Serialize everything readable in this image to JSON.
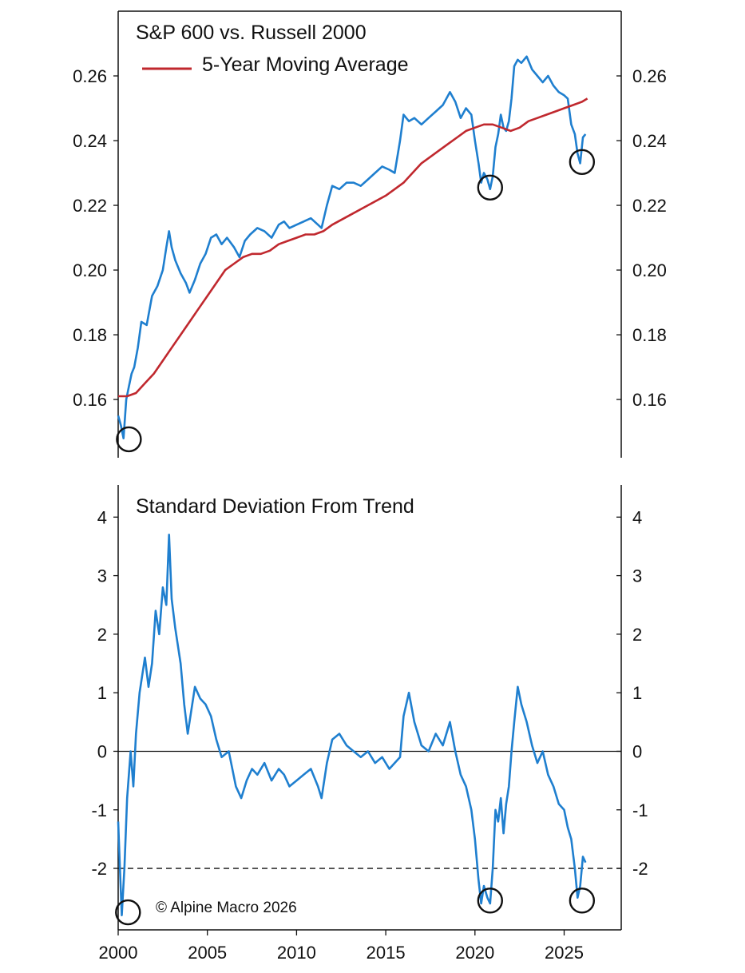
{
  "chart_data": [
    {
      "type": "line",
      "title": "S&P 600 vs. Russell 2000",
      "xlim": [
        2000,
        2028.2
      ],
      "ylim": [
        0.142,
        0.28
      ],
      "yticks": [
        "0.16",
        "0.18",
        "0.20",
        "0.22",
        "0.24",
        "0.26"
      ],
      "ytick_values": [
        0.16,
        0.18,
        0.2,
        0.22,
        0.24,
        0.26
      ],
      "legend": {
        "placement": "top-left",
        "entries": [
          "5-Year Moving Average"
        ]
      },
      "series": [
        {
          "key": "ratio",
          "color": "#1f7fcf",
          "x": [
            2000.0,
            2000.15,
            2000.3,
            2000.45,
            2000.6,
            2000.75,
            2000.9,
            2001.1,
            2001.3,
            2001.6,
            2001.9,
            2002.2,
            2002.5,
            2002.7,
            2002.85,
            2003.0,
            2003.2,
            2003.5,
            2003.8,
            2004.0,
            2004.3,
            2004.6,
            2004.9,
            2005.2,
            2005.5,
            2005.8,
            2006.1,
            2006.5,
            2006.8,
            2007.1,
            2007.4,
            2007.8,
            2008.2,
            2008.6,
            2009.0,
            2009.3,
            2009.6,
            2010.0,
            2010.4,
            2010.8,
            2011.2,
            2011.4,
            2011.7,
            2012.0,
            2012.4,
            2012.8,
            2013.2,
            2013.6,
            2014.0,
            2014.4,
            2014.8,
            2015.2,
            2015.5,
            2015.8,
            2016.0,
            2016.3,
            2016.6,
            2017.0,
            2017.4,
            2017.8,
            2018.2,
            2018.6,
            2018.9,
            2019.2,
            2019.5,
            2019.8,
            2020.0,
            2020.2,
            2020.35,
            2020.5,
            2020.7,
            2020.85,
            2021.0,
            2021.15,
            2021.3,
            2021.45,
            2021.6,
            2021.75,
            2021.9,
            2022.05,
            2022.2,
            2022.4,
            2022.6,
            2022.9,
            2023.2,
            2023.5,
            2023.8,
            2024.1,
            2024.4,
            2024.7,
            2025.0,
            2025.2,
            2025.4,
            2025.6,
            2025.75,
            2025.9,
            2026.05,
            2026.2
          ],
          "y": [
            0.155,
            0.152,
            0.148,
            0.16,
            0.164,
            0.168,
            0.17,
            0.176,
            0.184,
            0.183,
            0.192,
            0.195,
            0.2,
            0.207,
            0.212,
            0.207,
            0.203,
            0.199,
            0.196,
            0.193,
            0.197,
            0.202,
            0.205,
            0.21,
            0.211,
            0.208,
            0.21,
            0.207,
            0.204,
            0.209,
            0.211,
            0.213,
            0.212,
            0.21,
            0.214,
            0.215,
            0.213,
            0.214,
            0.215,
            0.216,
            0.214,
            0.213,
            0.22,
            0.226,
            0.225,
            0.227,
            0.227,
            0.226,
            0.228,
            0.23,
            0.232,
            0.231,
            0.23,
            0.24,
            0.248,
            0.246,
            0.247,
            0.245,
            0.247,
            0.249,
            0.251,
            0.255,
            0.252,
            0.247,
            0.25,
            0.248,
            0.24,
            0.233,
            0.227,
            0.23,
            0.228,
            0.225,
            0.229,
            0.238,
            0.242,
            0.248,
            0.244,
            0.243,
            0.246,
            0.253,
            0.263,
            0.265,
            0.264,
            0.266,
            0.262,
            0.26,
            0.258,
            0.26,
            0.257,
            0.255,
            0.254,
            0.253,
            0.245,
            0.242,
            0.236,
            0.233,
            0.241,
            0.242
          ]
        },
        {
          "key": "ma",
          "name": "5-Year Moving Average",
          "color": "#c0282e",
          "x": [
            2000.0,
            2000.5,
            2001.0,
            2001.5,
            2002.0,
            2002.5,
            2003.0,
            2003.5,
            2004.0,
            2004.5,
            2005.0,
            2005.5,
            2006.0,
            2006.5,
            2007.0,
            2007.5,
            2008.0,
            2008.5,
            2009.0,
            2009.5,
            2010.0,
            2010.5,
            2011.0,
            2011.5,
            2012.0,
            2013.0,
            2014.0,
            2015.0,
            2015.5,
            2016.0,
            2016.5,
            2017.0,
            2017.5,
            2018.0,
            2018.5,
            2019.0,
            2019.5,
            2020.0,
            2020.5,
            2021.0,
            2021.5,
            2022.0,
            2022.5,
            2023.0,
            2023.5,
            2024.0,
            2024.5,
            2025.0,
            2025.5,
            2026.0,
            2026.3
          ],
          "y": [
            0.161,
            0.161,
            0.162,
            0.165,
            0.168,
            0.172,
            0.176,
            0.18,
            0.184,
            0.188,
            0.192,
            0.196,
            0.2,
            0.202,
            0.204,
            0.205,
            0.205,
            0.206,
            0.208,
            0.209,
            0.21,
            0.211,
            0.211,
            0.212,
            0.214,
            0.217,
            0.22,
            0.223,
            0.225,
            0.227,
            0.23,
            0.233,
            0.235,
            0.237,
            0.239,
            0.241,
            0.243,
            0.244,
            0.245,
            0.245,
            0.244,
            0.243,
            0.244,
            0.246,
            0.247,
            0.248,
            0.249,
            0.25,
            0.251,
            0.252,
            0.253
          ]
        }
      ],
      "circles": [
        {
          "x": 2000.6,
          "y": 0.1477
        },
        {
          "x": 2020.85,
          "y": 0.2255
        },
        {
          "x": 2026.0,
          "y": 0.2334
        }
      ]
    },
    {
      "type": "line",
      "title": "Standard Deviation From Trend",
      "xlim": [
        2000,
        2028.2
      ],
      "ylim": [
        -3.05,
        4.55
      ],
      "xticks": [
        "2000",
        "2005",
        "2010",
        "2015",
        "2020",
        "2025"
      ],
      "xtick_values": [
        2000,
        2005,
        2010,
        2015,
        2020,
        2025
      ],
      "yticks": [
        "-2",
        "-1",
        "0",
        "1",
        "2",
        "3",
        "4"
      ],
      "ytick_values": [
        -2,
        -1,
        0,
        1,
        2,
        3,
        4
      ],
      "reference_lines": [
        {
          "y": 0,
          "style": "solid"
        },
        {
          "y": -2,
          "style": "dashed"
        }
      ],
      "series": [
        {
          "key": "sd",
          "color": "#1f7fcf",
          "x": [
            2000.0,
            2000.1,
            2000.2,
            2000.35,
            2000.5,
            2000.7,
            2000.85,
            2001.0,
            2001.2,
            2001.5,
            2001.7,
            2001.9,
            2002.1,
            2002.3,
            2002.5,
            2002.7,
            2002.85,
            2003.0,
            2003.2,
            2003.5,
            2003.7,
            2003.9,
            2004.1,
            2004.3,
            2004.6,
            2004.9,
            2005.2,
            2005.5,
            2005.8,
            2006.2,
            2006.6,
            2006.9,
            2007.2,
            2007.5,
            2007.8,
            2008.2,
            2008.6,
            2009.0,
            2009.3,
            2009.6,
            2010.0,
            2010.4,
            2010.8,
            2011.2,
            2011.4,
            2011.7,
            2012.0,
            2012.4,
            2012.8,
            2013.2,
            2013.6,
            2014.0,
            2014.4,
            2014.8,
            2015.2,
            2015.5,
            2015.8,
            2016.0,
            2016.3,
            2016.6,
            2017.0,
            2017.4,
            2017.8,
            2018.2,
            2018.6,
            2018.9,
            2019.2,
            2019.5,
            2019.8,
            2020.0,
            2020.2,
            2020.35,
            2020.5,
            2020.7,
            2020.85,
            2021.0,
            2021.15,
            2021.3,
            2021.45,
            2021.6,
            2021.75,
            2021.9,
            2022.05,
            2022.2,
            2022.4,
            2022.6,
            2022.9,
            2023.2,
            2023.5,
            2023.8,
            2024.1,
            2024.4,
            2024.7,
            2025.0,
            2025.2,
            2025.4,
            2025.6,
            2025.75,
            2025.9,
            2026.05,
            2026.2
          ],
          "y": [
            -1.2,
            -2.0,
            -2.8,
            -2.0,
            -0.8,
            0.0,
            -0.6,
            0.3,
            1.0,
            1.6,
            1.1,
            1.5,
            2.4,
            2.0,
            2.8,
            2.5,
            3.7,
            2.6,
            2.1,
            1.5,
            0.8,
            0.3,
            0.7,
            1.1,
            0.9,
            0.8,
            0.6,
            0.2,
            -0.1,
            0.0,
            -0.6,
            -0.8,
            -0.5,
            -0.3,
            -0.4,
            -0.2,
            -0.5,
            -0.3,
            -0.4,
            -0.6,
            -0.5,
            -0.4,
            -0.3,
            -0.6,
            -0.8,
            -0.2,
            0.2,
            0.3,
            0.1,
            0.0,
            -0.1,
            0.0,
            -0.2,
            -0.1,
            -0.3,
            -0.2,
            -0.1,
            0.6,
            1.0,
            0.5,
            0.1,
            0.0,
            0.3,
            0.1,
            0.5,
            0.0,
            -0.4,
            -0.6,
            -1.0,
            -1.5,
            -2.2,
            -2.6,
            -2.3,
            -2.5,
            -2.6,
            -2.0,
            -1.0,
            -1.2,
            -0.8,
            -1.4,
            -0.9,
            -0.6,
            0.0,
            0.5,
            1.1,
            0.8,
            0.5,
            0.1,
            -0.2,
            0.0,
            -0.4,
            -0.6,
            -0.9,
            -1.0,
            -1.3,
            -1.5,
            -2.0,
            -2.5,
            -2.3,
            -1.8,
            -1.9
          ]
        }
      ],
      "circles": [
        {
          "x": 2000.55,
          "y": -2.75
        },
        {
          "x": 2020.85,
          "y": -2.55
        },
        {
          "x": 2026.0,
          "y": -2.55
        }
      ]
    }
  ],
  "credit": "© Alpine Macro 2026"
}
